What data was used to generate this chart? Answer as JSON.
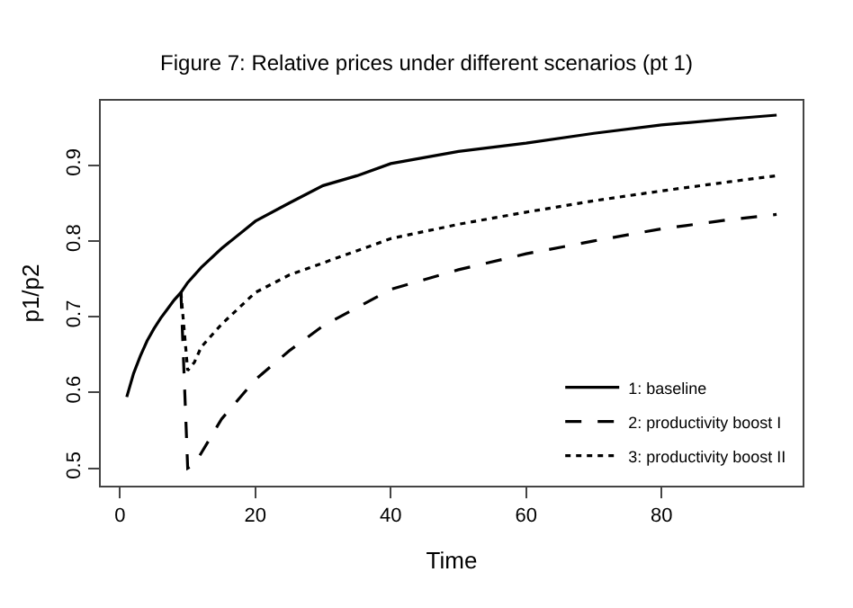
{
  "chart_data": {
    "type": "line",
    "title": "Figure 7: Relative prices under different scenarios (pt 1)",
    "xlabel": "Time",
    "ylabel": "p1/p2",
    "xlim": [
      -2.84,
      100.84
    ],
    "xticks": [
      0,
      20,
      40,
      60,
      80
    ],
    "ylim": [
      0.477,
      0.985
    ],
    "yticks": [
      0.5,
      0.6,
      0.7,
      0.8,
      0.9
    ],
    "grid": false,
    "legend": "bottom right",
    "marker": "none",
    "series": [
      {
        "name": "1: baseline",
        "color": "#000000",
        "line_style": "solid",
        "x": [
          1,
          2,
          3,
          4,
          5,
          6,
          7,
          8,
          9,
          10,
          12,
          15,
          20,
          25,
          30,
          35,
          40,
          50,
          60,
          70,
          80,
          90,
          97
        ],
        "values": [
          0.594,
          0.625,
          0.648,
          0.668,
          0.684,
          0.698,
          0.71,
          0.722,
          0.732,
          0.745,
          0.765,
          0.79,
          0.826,
          0.85,
          0.873,
          0.886,
          0.902,
          0.918,
          0.929,
          0.942,
          0.953,
          0.961,
          0.966
        ]
      },
      {
        "name": "2: productivity boost I",
        "color": "#000000",
        "line_style": "dashed",
        "x": [
          9,
          10,
          11,
          12,
          15,
          20,
          25,
          30,
          40,
          50,
          60,
          70,
          80,
          90,
          97
        ],
        "values": [
          0.732,
          0.5,
          0.505,
          0.52,
          0.565,
          0.617,
          0.655,
          0.688,
          0.736,
          0.762,
          0.783,
          0.8,
          0.816,
          0.828,
          0.835
        ]
      },
      {
        "name": "3: productivity boost II",
        "color": "#000000",
        "line_style": "dotted",
        "x": [
          9,
          10,
          11,
          12,
          15,
          20,
          25,
          30,
          40,
          50,
          60,
          70,
          80,
          90,
          97
        ],
        "values": [
          0.732,
          0.629,
          0.64,
          0.66,
          0.69,
          0.732,
          0.755,
          0.771,
          0.803,
          0.822,
          0.838,
          0.853,
          0.866,
          0.878,
          0.886
        ]
      }
    ]
  }
}
